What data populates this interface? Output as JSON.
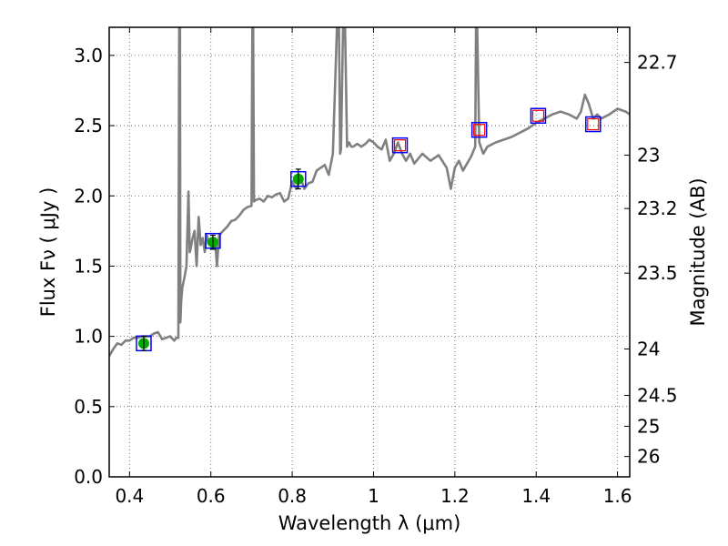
{
  "chart_data": {
    "type": "line",
    "title": "",
    "xlabel": "Wavelength  λ (μm)",
    "ylabel": "Flux  Fν  ( μJy )",
    "ylabel_right": "Magnitude (AB)",
    "xlim": [
      0.35,
      1.63
    ],
    "ylim": [
      0.0,
      3.2
    ],
    "grid": true,
    "xticks": [
      0.4,
      0.6,
      0.8,
      1.0,
      1.2,
      1.4,
      1.6
    ],
    "xtick_labels": [
      "0.4",
      "0.6",
      "0.8",
      "1",
      "1.2",
      "1.4",
      "1.6"
    ],
    "yticks": [
      0.0,
      0.5,
      1.0,
      1.5,
      2.0,
      2.5,
      3.0
    ],
    "ytick_labels": [
      "0.0",
      "0.5",
      "1.0",
      "1.5",
      "2.0",
      "2.5",
      "3.0"
    ],
    "right_ticks": [
      {
        "label": "22.7",
        "flux": 2.95
      },
      {
        "label": "23",
        "flux": 2.29
      },
      {
        "label": "23.2",
        "flux": 1.91
      },
      {
        "label": "23.5",
        "flux": 1.45
      },
      {
        "label": "24",
        "flux": 0.91
      },
      {
        "label": "24.5",
        "flux": 0.58
      },
      {
        "label": "25",
        "flux": 0.36
      },
      {
        "label": "26",
        "flux": 0.145
      }
    ],
    "colors": {
      "model": "#808080",
      "measured": "#00aa00",
      "model_band": "#ff0000",
      "box": "#0000ff",
      "grid": "#555555"
    },
    "series": [
      {
        "kind": "model_spectrum",
        "x": [
          0.35,
          0.36,
          0.37,
          0.38,
          0.39,
          0.4,
          0.41,
          0.42,
          0.43,
          0.44,
          0.45,
          0.46,
          0.47,
          0.48,
          0.49,
          0.5,
          0.51,
          0.515,
          0.52,
          0.522,
          0.524,
          0.525,
          0.527,
          0.53,
          0.535,
          0.54,
          0.545,
          0.548,
          0.55,
          0.555,
          0.56,
          0.565,
          0.57,
          0.575,
          0.58,
          0.585,
          0.59,
          0.595,
          0.6,
          0.605,
          0.61,
          0.615,
          0.62,
          0.63,
          0.64,
          0.65,
          0.66,
          0.67,
          0.68,
          0.69,
          0.7,
          0.702,
          0.704,
          0.706,
          0.71,
          0.72,
          0.73,
          0.74,
          0.75,
          0.76,
          0.77,
          0.78,
          0.79,
          0.8,
          0.81,
          0.82,
          0.83,
          0.84,
          0.85,
          0.86,
          0.87,
          0.88,
          0.89,
          0.9,
          0.91,
          0.915,
          0.918,
          0.92,
          0.925,
          0.93,
          0.935,
          0.94,
          0.945,
          0.95,
          0.96,
          0.97,
          0.98,
          0.99,
          1.0,
          1.01,
          1.02,
          1.03,
          1.04,
          1.05,
          1.06,
          1.07,
          1.08,
          1.09,
          1.1,
          1.12,
          1.14,
          1.16,
          1.18,
          1.19,
          1.2,
          1.21,
          1.22,
          1.24,
          1.25,
          1.252,
          1.255,
          1.26,
          1.27,
          1.28,
          1.3,
          1.32,
          1.34,
          1.36,
          1.38,
          1.4,
          1.42,
          1.44,
          1.46,
          1.48,
          1.5,
          1.51,
          1.52,
          1.53,
          1.54,
          1.55,
          1.56,
          1.58,
          1.6,
          1.62,
          1.63
        ],
        "y": [
          0.86,
          0.91,
          0.95,
          0.94,
          0.97,
          0.97,
          0.99,
          0.99,
          1.0,
          1.0,
          1.0,
          1.02,
          1.03,
          0.98,
          0.99,
          1.0,
          0.97,
          0.99,
          0.99,
          3.2,
          3.2,
          1.1,
          1.25,
          1.35,
          1.42,
          1.5,
          2.03,
          1.6,
          1.62,
          1.7,
          1.75,
          1.5,
          1.85,
          1.65,
          1.7,
          1.6,
          1.72,
          1.66,
          1.67,
          1.68,
          1.7,
          1.5,
          1.72,
          1.75,
          1.78,
          1.82,
          1.83,
          1.86,
          1.9,
          1.92,
          1.93,
          3.2,
          3.2,
          1.96,
          1.97,
          1.98,
          1.96,
          2.0,
          1.99,
          2.01,
          2.02,
          1.96,
          1.98,
          2.1,
          2.05,
          2.13,
          2.05,
          2.09,
          2.1,
          2.18,
          2.2,
          2.22,
          2.15,
          2.3,
          3.2,
          3.2,
          2.3,
          2.33,
          3.2,
          3.2,
          2.35,
          2.38,
          2.35,
          2.35,
          2.37,
          2.35,
          2.37,
          2.4,
          2.38,
          2.35,
          2.33,
          2.4,
          2.25,
          2.3,
          2.38,
          2.3,
          2.25,
          2.3,
          2.23,
          2.3,
          2.25,
          2.29,
          2.2,
          2.05,
          2.2,
          2.25,
          2.18,
          2.28,
          2.35,
          3.2,
          3.2,
          2.38,
          2.3,
          2.35,
          2.38,
          2.4,
          2.42,
          2.45,
          2.48,
          2.52,
          2.55,
          2.58,
          2.6,
          2.58,
          2.55,
          2.6,
          2.72,
          2.65,
          2.55,
          2.58,
          2.55,
          2.58,
          2.62,
          2.6,
          2.58
        ]
      },
      {
        "kind": "photometry",
        "points": [
          {
            "x": 0.435,
            "measured": 0.95,
            "model": 0.95,
            "err": 0.05
          },
          {
            "x": 0.605,
            "measured": 1.67,
            "model": 1.68,
            "err": 0.05
          },
          {
            "x": 0.815,
            "measured": 2.12,
            "model": 2.12,
            "err": 0.07
          },
          {
            "x": 1.065,
            "measured": null,
            "model": 2.36
          },
          {
            "x": 1.26,
            "measured": null,
            "model": 2.47
          },
          {
            "x": 1.405,
            "measured": null,
            "model": 2.57
          },
          {
            "x": 1.54,
            "measured": null,
            "model": 2.51
          }
        ]
      }
    ]
  }
}
